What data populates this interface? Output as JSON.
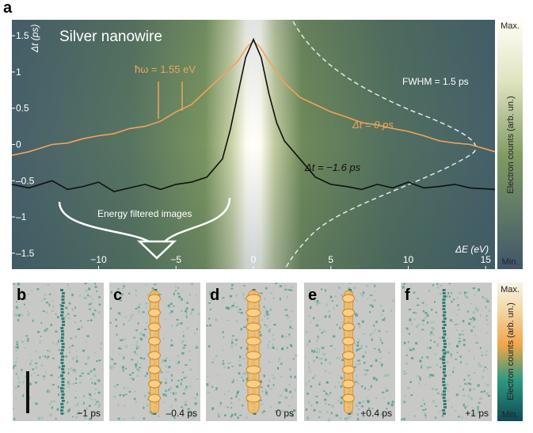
{
  "panel_a": {
    "label": "a",
    "title": "Silver nanowire",
    "x_label": "ΔE (eV)",
    "y_label": "Δt (ps)",
    "xlim": [
      -15.6,
      15.6
    ],
    "ylim": [
      -1.72,
      1.72
    ],
    "xticks": [
      {
        "value": -10,
        "label": "−10"
      },
      {
        "value": -5,
        "label": "−5"
      },
      0,
      5,
      10,
      15
    ],
    "yticks": [
      1.5,
      1,
      0.5,
      0,
      {
        "value": -0.5,
        "label": "–0.5"
      },
      {
        "value": -1,
        "label": "–1"
      },
      {
        "value": -1.5,
        "label": "–1.5"
      }
    ],
    "curves": [
      {
        "name": "Δt = 0 ps",
        "color": "#f2a35a",
        "x": [
          -15.6,
          -14.5,
          -13,
          -12,
          -11,
          -10,
          -9,
          -8,
          -7,
          -6,
          -5,
          -4,
          -3,
          -2,
          -1,
          -0.4,
          0,
          0.4,
          1,
          2,
          3,
          4,
          5,
          6,
          7,
          8,
          9,
          10,
          11,
          12,
          13,
          14,
          15.6
        ],
        "y": [
          -0.15,
          -0.1,
          0.0,
          0.02,
          0.08,
          0.12,
          0.15,
          0.22,
          0.25,
          0.32,
          0.45,
          0.55,
          0.75,
          0.95,
          1.15,
          1.35,
          1.42,
          1.35,
          1.15,
          0.85,
          0.65,
          0.55,
          0.45,
          0.38,
          0.3,
          0.27,
          0.22,
          0.18,
          0.12,
          0.05,
          0.02,
          0.0,
          -0.1
        ]
      },
      {
        "name": "Δt = −1.6 ps",
        "color": "#111111",
        "x": [
          -15.6,
          -14.5,
          -13,
          -12,
          -11,
          -10,
          -9,
          -8,
          -7,
          -6,
          -5,
          -4,
          -3,
          -2,
          -1.5,
          -1,
          -0.5,
          0,
          0.5,
          1,
          1.5,
          2,
          3,
          4,
          5,
          6,
          7,
          8,
          9,
          10,
          11,
          12,
          13,
          14,
          15.6
        ],
        "y": [
          -0.55,
          -0.6,
          -0.5,
          -0.62,
          -0.58,
          -0.52,
          -0.65,
          -0.6,
          -0.55,
          -0.62,
          -0.55,
          -0.52,
          -0.45,
          -0.2,
          0.2,
          0.7,
          1.2,
          1.45,
          1.2,
          0.7,
          0.3,
          0.05,
          -0.2,
          -0.45,
          -0.55,
          -0.58,
          -0.62,
          -0.55,
          -0.6,
          -0.52,
          -0.6,
          -0.58,
          -0.55,
          -0.6,
          -0.62
        ]
      }
    ],
    "photon_energy": "ħω = 1.55 eV",
    "fwhm": "FWHM = 1.5 ps",
    "arrow_label": "Energy filtered images",
    "colorbar": {
      "max": "Max.",
      "min": "Min.",
      "label": "Electron counts (arb. un.)"
    }
  },
  "panels": [
    {
      "label": "b",
      "time": "−1 ps"
    },
    {
      "label": "c",
      "time": "–0.4 ps"
    },
    {
      "label": "d",
      "time": "0 ps"
    },
    {
      "label": "e",
      "time": "+0.4 ps"
    },
    {
      "label": "f",
      "time": "+1 ps"
    }
  ],
  "colorbar_b": {
    "max": "Max.",
    "min": "Min.",
    "label": "Electron counts (arb. un.)"
  }
}
